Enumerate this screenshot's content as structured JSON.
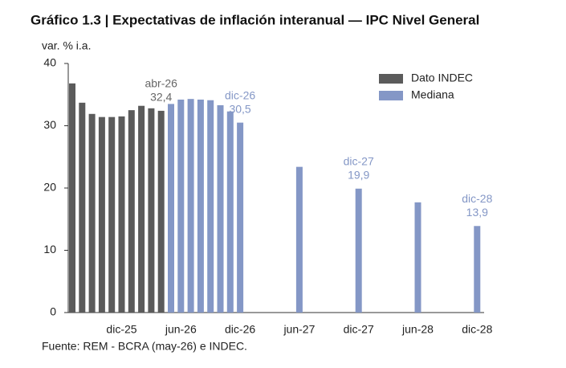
{
  "chart_data": {
    "type": "bar",
    "title": "Gráfico 1.3 | Expectativas de inflación interanual — IPC Nivel General",
    "y_label": "var. % i.a.",
    "source": "Fuente: REM - BCRA (may-26) e INDEC.",
    "categories": [
      null,
      null,
      null,
      null,
      null,
      "dic-25",
      null,
      null,
      null,
      null,
      null,
      "jun-26",
      null,
      null,
      null,
      null,
      null,
      "dic-26",
      null,
      null,
      null,
      null,
      null,
      "jun-27",
      null,
      null,
      null,
      null,
      null,
      "dic-27",
      null,
      null,
      null,
      null,
      null,
      "jun-28",
      null,
      null,
      null,
      null,
      null,
      "dic-28"
    ],
    "series": [
      {
        "name": "Dato INDEC",
        "color": "#5b5b5b",
        "values": [
          36.8,
          33.7,
          31.9,
          31.4,
          31.4,
          31.5,
          32.5,
          33.2,
          32.8,
          32.4,
          null,
          null,
          null,
          null,
          null,
          null,
          null,
          null,
          null,
          null,
          null,
          null,
          null,
          null,
          null,
          null,
          null,
          null,
          null,
          null,
          null,
          null,
          null,
          null,
          null,
          null,
          null,
          null,
          null,
          null,
          null,
          null
        ],
        "value_labels": [
          null,
          null,
          null,
          null,
          null,
          null,
          null,
          null,
          null,
          "32,4",
          null,
          null,
          null,
          null,
          null,
          null,
          null,
          null,
          null,
          null,
          null,
          null,
          null,
          null,
          null,
          null,
          null,
          null,
          null,
          null,
          null,
          null,
          null,
          null,
          null,
          null,
          null,
          null,
          null,
          null,
          null,
          null
        ],
        "annotations": [
          null,
          null,
          null,
          null,
          null,
          null,
          null,
          null,
          null,
          "abr-26",
          null,
          null,
          null,
          null,
          null,
          null,
          null,
          null,
          null,
          null,
          null,
          null,
          null,
          null,
          null,
          null,
          null,
          null,
          null,
          null,
          null,
          null,
          null,
          null,
          null,
          null,
          null,
          null,
          null,
          null,
          null,
          null
        ]
      },
      {
        "name": "Mediana",
        "color": "#8497c6",
        "values": [
          null,
          null,
          null,
          null,
          null,
          null,
          null,
          null,
          null,
          null,
          33.5,
          34.2,
          34.3,
          34.2,
          34.1,
          33.3,
          32.3,
          30.5,
          null,
          null,
          null,
          null,
          null,
          23.4,
          null,
          null,
          null,
          null,
          null,
          19.9,
          null,
          null,
          null,
          null,
          null,
          17.7,
          null,
          null,
          null,
          null,
          null,
          13.9
        ],
        "value_labels": [
          null,
          null,
          null,
          null,
          null,
          null,
          null,
          null,
          null,
          null,
          null,
          null,
          null,
          null,
          null,
          null,
          null,
          "30,5",
          null,
          null,
          null,
          null,
          null,
          null,
          null,
          null,
          null,
          null,
          null,
          "19,9",
          null,
          null,
          null,
          null,
          null,
          null,
          null,
          null,
          null,
          null,
          null,
          "13,9"
        ],
        "annotations": [
          null,
          null,
          null,
          null,
          null,
          null,
          null,
          null,
          null,
          null,
          null,
          null,
          null,
          null,
          null,
          null,
          null,
          "dic-26",
          null,
          null,
          null,
          null,
          null,
          null,
          null,
          null,
          null,
          null,
          null,
          "dic-27",
          null,
          null,
          null,
          null,
          null,
          null,
          null,
          null,
          null,
          null,
          null,
          "dic-28"
        ]
      }
    ],
    "ylim": [
      0,
      40
    ],
    "yticks": [
      0,
      10,
      20,
      30,
      40
    ],
    "grid": false,
    "legend": "top-right"
  }
}
